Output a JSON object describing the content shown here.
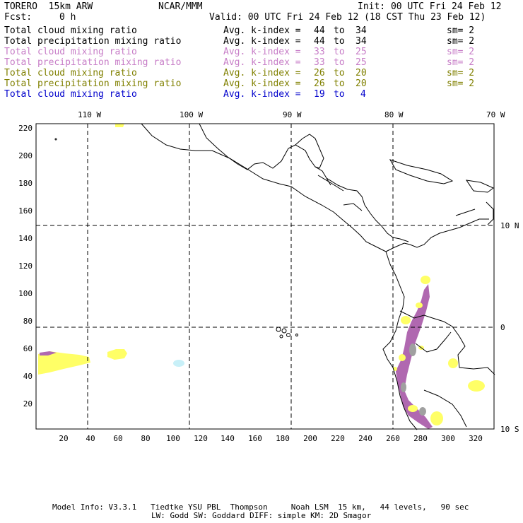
{
  "header": {
    "model": "TORERO  15km ARW",
    "org": "NCAR/MMM",
    "init": "Init: 00 UTC Fri 24 Feb 12",
    "fcst_label": "Fcst:",
    "fcst_value": "0 h",
    "valid": "Valid: 00 UTC Fri 24 Feb 12 (18 CST Thu 23 Feb 12)"
  },
  "legend": [
    {
      "field": "Total cloud mixing ratio",
      "idx": "Avg. k-index =",
      "from": "44",
      "to_word": "to",
      "to": "34",
      "sm": "sm= 2",
      "color": "#000000"
    },
    {
      "field": "Total precipitation mixing ratio",
      "idx": "Avg. k-index =",
      "from": "44",
      "to_word": "to",
      "to": "34",
      "sm": "sm= 2",
      "color": "#000000"
    },
    {
      "field": "Total cloud mixing ratio",
      "idx": "Avg. k-index =",
      "from": "33",
      "to_word": "to",
      "to": "25",
      "sm": "sm= 2",
      "color": "#c77dc7"
    },
    {
      "field": "Total precipitation mixing ratio",
      "idx": "Avg. k-index =",
      "from": "33",
      "to_word": "to",
      "to": "25",
      "sm": "sm= 2",
      "color": "#c77dc7"
    },
    {
      "field": "Total cloud mixing ratio",
      "idx": "Avg. k-index =",
      "from": "26",
      "to_word": "to",
      "to": "20",
      "sm": "sm= 2",
      "color": "#808000"
    },
    {
      "field": "Total precipitation mixing ratio",
      "idx": "Avg. k-index =",
      "from": "26",
      "to_word": "to",
      "to": "20",
      "sm": "sm= 2",
      "color": "#808000"
    },
    {
      "field": "Total cloud mixing ratio",
      "idx": "Avg. k-index =",
      "from": "19",
      "to_word": "to",
      "to": "4",
      "sm": "",
      "color": "#0000cc"
    }
  ],
  "map": {
    "lon_labels": [
      "110 W",
      "100 W",
      "90 W",
      "80 W",
      "70 W"
    ],
    "lat_labels": [
      "10 N",
      "0",
      "10 S"
    ],
    "y_ticks": [
      "220",
      "200",
      "180",
      "160",
      "140",
      "120",
      "100",
      "80",
      "60",
      "40",
      "20"
    ],
    "x_ticks": [
      "20",
      "40",
      "60",
      "80",
      "100",
      "120",
      "140",
      "160",
      "180",
      "200",
      "220",
      "240",
      "260",
      "280",
      "300",
      "320"
    ],
    "colors": {
      "land": "#000000",
      "cloud": "#ffff66",
      "precip_mid": "#b068b0",
      "precip_low": "#a0a0a0",
      "light": "#c8f0f8"
    }
  },
  "footer": {
    "line1": "Model Info: V3.3.1   Tiedtke YSU PBL  Thompson     Noah LSM  15 km,   44 levels,   90 sec",
    "line2": "LW: Godd SW: Goddard DIFF: simple KM: 2D Smagor"
  }
}
